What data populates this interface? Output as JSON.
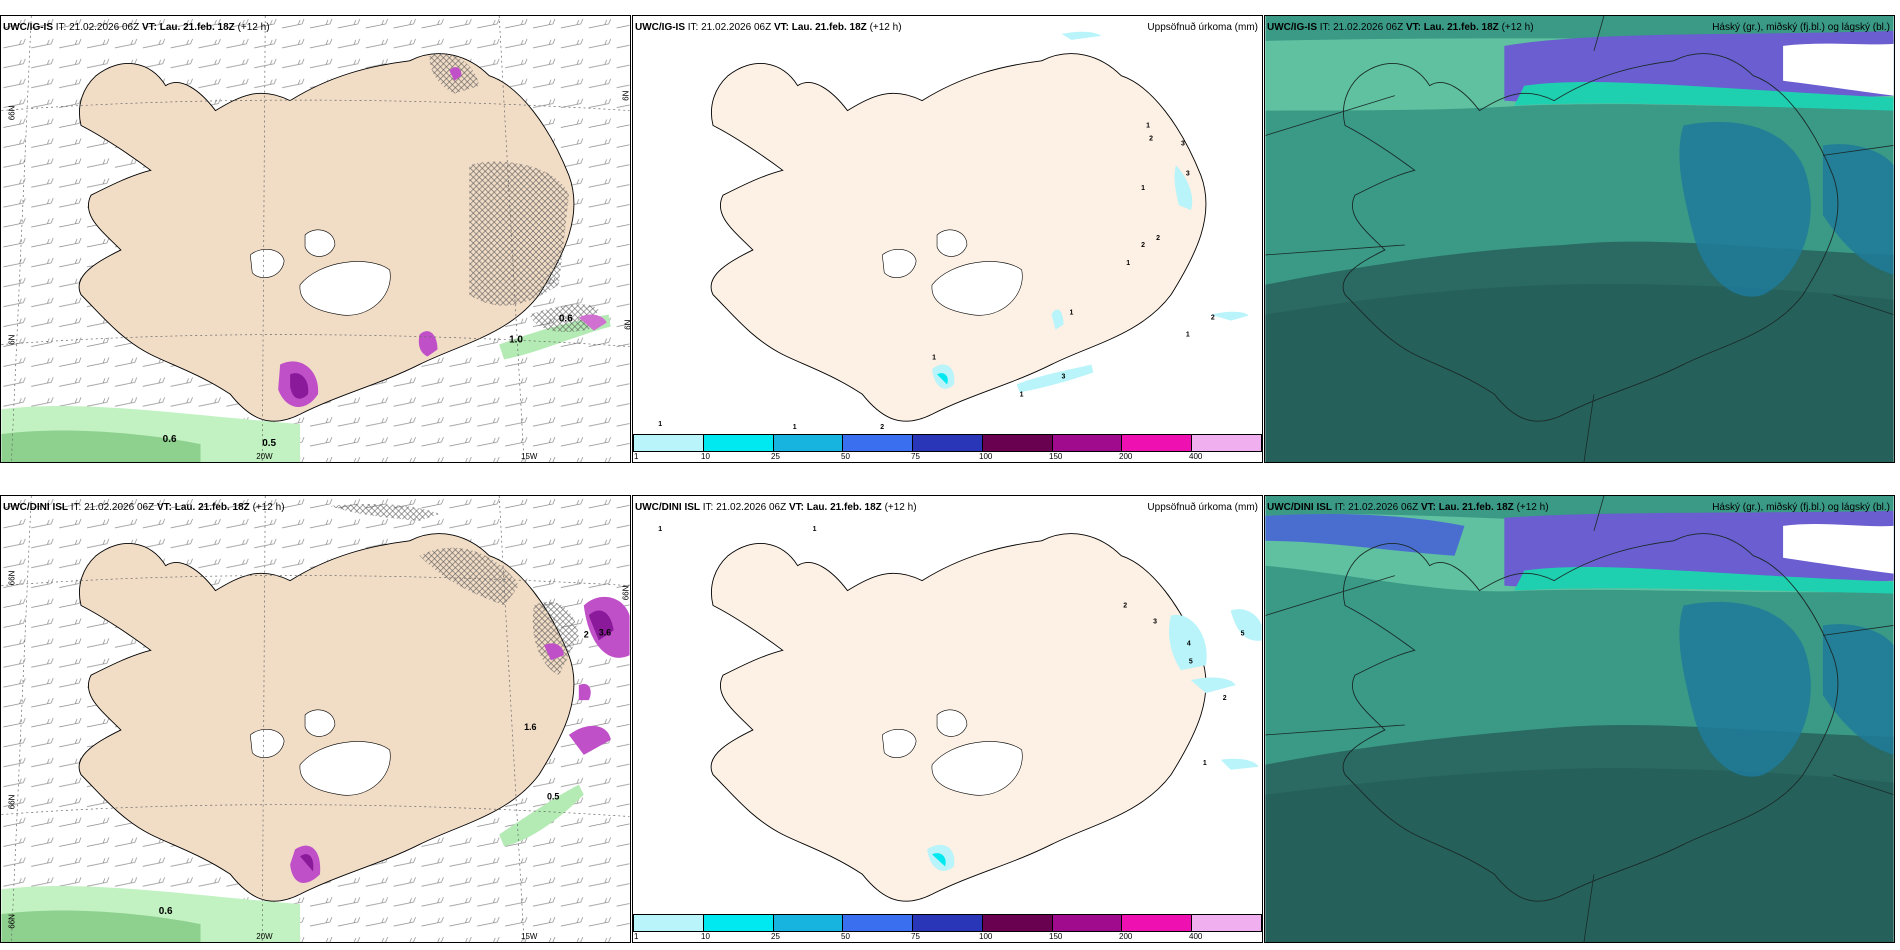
{
  "panels": [
    {
      "model": "UWC/IG-IS",
      "it_label": "IT:",
      "it": "21.02.2026 06Z",
      "vt_label": "VT: Lau. 21.feb. 18Z",
      "lead": "(+12 h)",
      "right": ""
    },
    {
      "model": "UWC/IG-IS",
      "it_label": "IT:",
      "it": "21.02.2026 06Z",
      "vt_label": "VT: Lau. 21.feb. 18Z",
      "lead": "(+12 h)",
      "right": "Uppsöfnuð úrkoma (mm)"
    },
    {
      "model": "UWC/IG-IS",
      "it_label": "IT:",
      "it": "21.02.2026 06Z",
      "vt_label": "VT: Lau. 21.feb. 18Z",
      "lead": "(+12 h)",
      "right": "Háský (gr.), miðský (fj.bl.) og lágský (bl.)"
    },
    {
      "model": "UWC/DINI ISL",
      "it_label": "IT:",
      "it": "21.02.2026 06Z",
      "vt_label": "VT: Lau. 21.feb. 18Z",
      "lead": "(+12 h)",
      "right": ""
    },
    {
      "model": "UWC/DINI ISL",
      "it_label": "IT:",
      "it": "21.02.2026 06Z",
      "vt_label": "VT: Lau. 21.feb. 18Z",
      "lead": "(+12 h)",
      "right": "Uppsöfnuð úrkoma (mm)"
    },
    {
      "model": "UWC/DINI ISL",
      "it_label": "IT:",
      "it": "21.02.2026 06Z",
      "vt_label": "VT: Lau. 21.feb. 18Z",
      "lead": "(+12 h)",
      "right": "Háský (gr.), miðský (fj.bl.) og lágský (bl.)"
    }
  ],
  "axes": {
    "lat_a": "N99",
    "lat_b": "N9",
    "lat_c": "N99",
    "lon_a": "20W",
    "lon_b": "15W"
  },
  "precip_legend": {
    "labels": [
      "1",
      "10",
      "25",
      "50",
      "75",
      "100",
      "150",
      "200",
      "400"
    ],
    "colors": [
      "#b8f4fa",
      "#00e8f0",
      "#18b4e0",
      "#3a6ff0",
      "#2a36b8",
      "#6a0050",
      "#a00a8c",
      "#ee10b0",
      "#f0b0f0"
    ]
  },
  "wind_labels_top": [
    "0.6",
    "0.5",
    "1.0",
    "0.6"
  ],
  "wind_labels_bottom": [
    "0.6",
    "2",
    "3.6",
    "1.6",
    "0.5"
  ],
  "precip_labels_top": [
    "1",
    "2",
    "3",
    "3",
    "1",
    "2",
    "2",
    "1",
    "1",
    "2",
    "1",
    "1",
    "1",
    "3",
    "1",
    "1",
    "2"
  ],
  "precip_labels_bottom": [
    "1",
    "1",
    "2",
    "3",
    "4",
    "5",
    "5",
    "2",
    "1"
  ],
  "colors": {
    "land": "#f1dcc6",
    "land_precip": "#fdf0e4",
    "sea_cloud": "#3a9a86",
    "low_cloud": "#2a6a62",
    "high_cloud": "#6a5ed0",
    "cloud_mid": "#1f7a9a"
  }
}
